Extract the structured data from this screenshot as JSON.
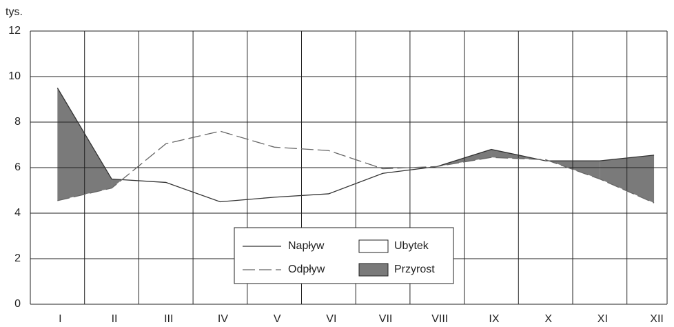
{
  "chart_data": {
    "type": "line",
    "y_label": "tys.",
    "categories": [
      "I",
      "II",
      "III",
      "IV",
      "V",
      "VI",
      "VII",
      "VIII",
      "IX",
      "X",
      "XI",
      "XII"
    ],
    "series": [
      {
        "name": "Napływ",
        "color": "#333333",
        "dashed": false,
        "values": [
          9.5,
          5.5,
          5.35,
          4.5,
          4.7,
          4.85,
          5.75,
          6.05,
          6.8,
          6.3,
          6.3,
          6.55
        ]
      },
      {
        "name": "Odpływ",
        "color": "#666666",
        "dashed": true,
        "values": [
          4.55,
          5.1,
          7.05,
          7.6,
          6.9,
          6.75,
          5.95,
          6.05,
          6.45,
          6.35,
          5.5,
          4.45
        ]
      }
    ],
    "areas": [
      {
        "name": "Ubytek",
        "color": "#ffffff"
      },
      {
        "name": "Przyrost",
        "color": "#7a7a7a"
      }
    ],
    "ylim": [
      0,
      12
    ],
    "yticks": [
      0,
      2,
      4,
      6,
      8,
      10,
      12
    ],
    "grid": true
  }
}
